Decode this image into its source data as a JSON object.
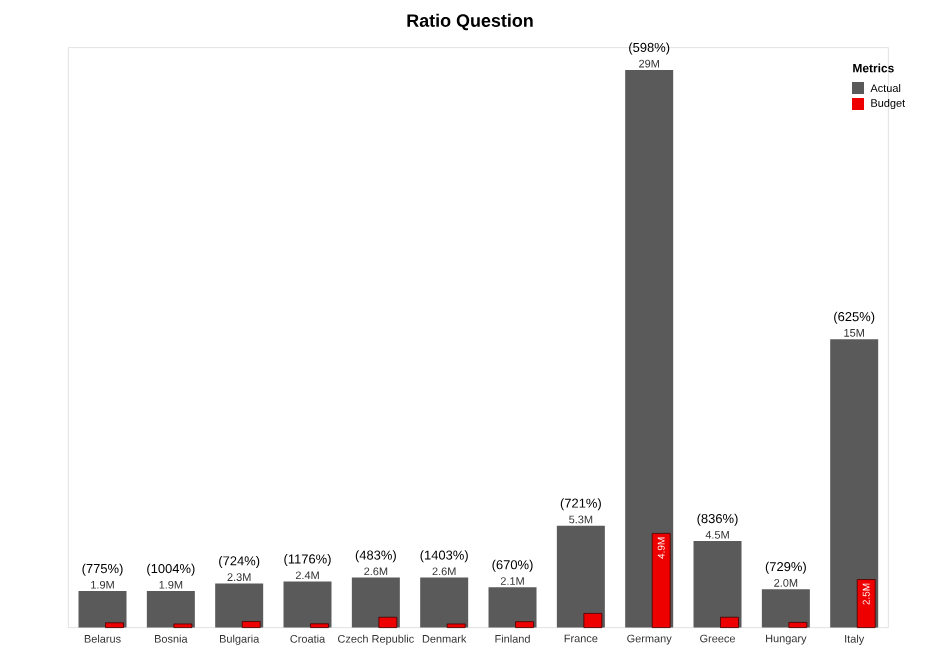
{
  "chart_data": {
    "type": "bar",
    "title": "Ratio Question",
    "legend_title": "Metrics",
    "legend": "top right",
    "categories": [
      "Belarus",
      "Bosnia",
      "Bulgaria",
      "Croatia",
      "Czech Republic",
      "Denmark",
      "Finland",
      "France",
      "Germany",
      "Greece",
      "Hungary",
      "Italy"
    ],
    "series": [
      {
        "name": "Actual",
        "color": "#5a5a5a",
        "values": [
          1.9,
          1.9,
          2.3,
          2.4,
          2.6,
          2.6,
          2.1,
          5.3,
          29,
          4.5,
          2.0,
          15
        ],
        "value_labels": [
          "1.9M",
          "1.9M",
          "2.3M",
          "2.4M",
          "2.6M",
          "2.6M",
          "2.1M",
          "5.3M",
          "29M",
          "4.5M",
          "2.0M",
          "15M"
        ]
      },
      {
        "name": "Budget",
        "color": "#ee0000",
        "values": [
          0.25,
          0.19,
          0.32,
          0.2,
          0.54,
          0.19,
          0.31,
          0.74,
          4.9,
          0.54,
          0.27,
          2.5
        ],
        "value_labels": [
          null,
          null,
          null,
          null,
          null,
          null,
          null,
          null,
          "4.9M",
          null,
          null,
          "2.5M"
        ]
      }
    ],
    "annotations": [
      {
        "text": "(775%)",
        "x": "Belarus",
        "y": 1.9
      },
      {
        "text": "(1004%)",
        "x": "Bosnia",
        "y": 1.9
      },
      {
        "text": "(724%)",
        "x": "Bulgaria",
        "y": 2.3
      },
      {
        "text": "(1176%)",
        "x": "Croatia",
        "y": 2.4
      },
      {
        "text": "(483%)",
        "x": "Czech Republic",
        "y": 2.6
      },
      {
        "text": "(1403%)",
        "x": "Denmark",
        "y": 2.6
      },
      {
        "text": "(670%)",
        "x": "Finland",
        "y": 2.1
      },
      {
        "text": "(721%)",
        "x": "France",
        "y": 5.3
      },
      {
        "text": "(598%)",
        "x": "Germany",
        "y": 29
      },
      {
        "text": "(836%)",
        "x": "Greece",
        "y": 4.5
      },
      {
        "text": "(729%)",
        "x": "Hungary",
        "y": 2.0
      },
      {
        "text": "(625%)",
        "x": "Italy",
        "y": 15
      }
    ]
  }
}
